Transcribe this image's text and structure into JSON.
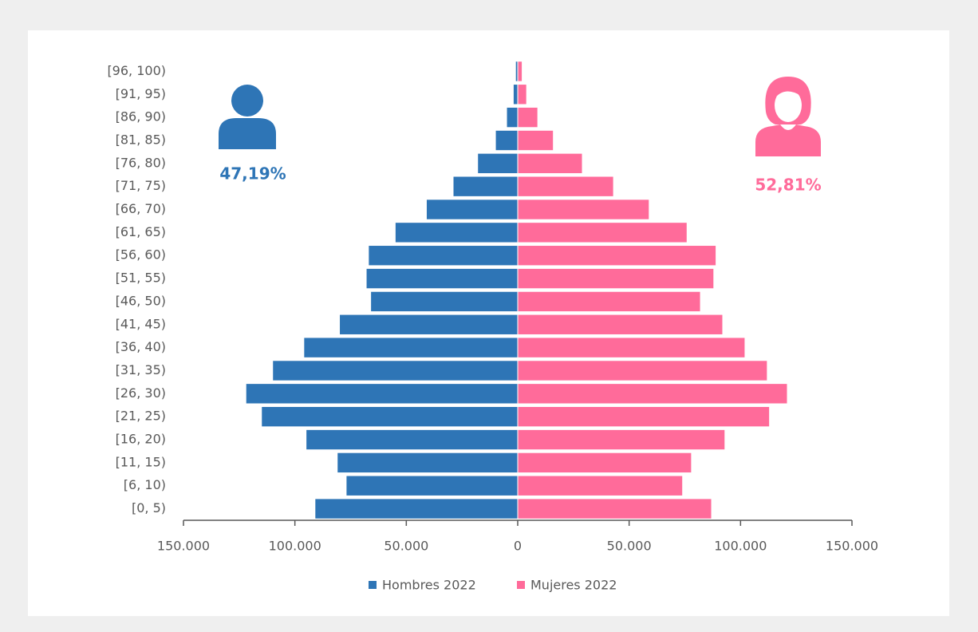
{
  "chart_data": {
    "type": "pyramid",
    "categories": [
      "[0, 5)",
      "[6, 10)",
      "[11, 15)",
      "[16, 20)",
      "[21, 25)",
      "[26, 30)",
      "[31, 35)",
      "[36, 40)",
      "[41, 45)",
      "[46, 50)",
      "[51, 55)",
      "[56, 60)",
      "[61, 65)",
      "[66, 70)",
      "[71, 75)",
      "[76, 80)",
      "[81, 85)",
      "[86, 90)",
      "[91, 95)",
      "[96, 100)"
    ],
    "series": [
      {
        "name": "Hombres 2022",
        "color": "#2e75b6",
        "values": [
          -91000,
          -77000,
          -81000,
          -95000,
          -115000,
          -122000,
          -110000,
          -96000,
          -80000,
          -66000,
          -68000,
          -67000,
          -55000,
          -41000,
          -29000,
          -18000,
          -10000,
          -5000,
          -2000,
          -1000
        ]
      },
      {
        "name": "Mujeres 2022",
        "color": "#ff6b9a",
        "values": [
          87000,
          74000,
          78000,
          93000,
          113000,
          121000,
          112000,
          102000,
          92000,
          82000,
          88000,
          89000,
          76000,
          59000,
          43000,
          29000,
          16000,
          9000,
          4000,
          2000
        ]
      }
    ],
    "xlim": [
      -150000,
      150000
    ],
    "xticks": [
      {
        "value": -150000,
        "label": "150.000"
      },
      {
        "value": -100000,
        "label": "100.000"
      },
      {
        "value": -50000,
        "label": "50.000"
      },
      0,
      {
        "value": 50000,
        "label": "50.000"
      },
      {
        "value": 100000,
        "label": "100.000"
      },
      {
        "value": 150000,
        "label": "150.000"
      }
    ],
    "annotations": [
      "47,19%",
      "52,81%"
    ],
    "legend": "bottom"
  }
}
